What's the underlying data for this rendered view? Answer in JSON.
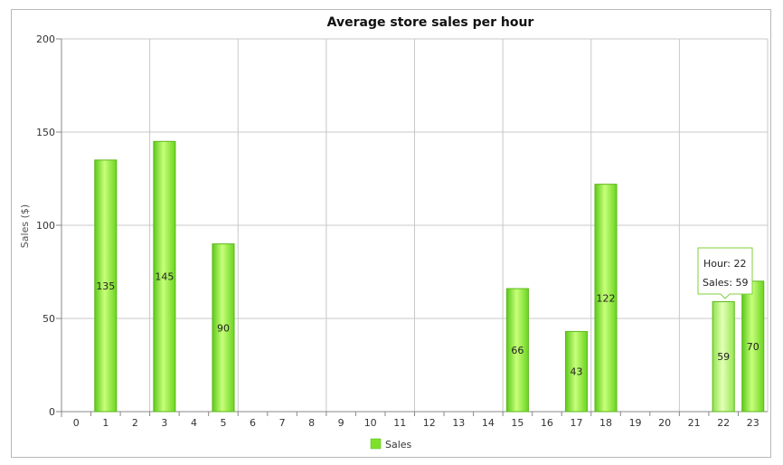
{
  "chart_data": {
    "type": "bar",
    "title": "Average store sales per hour",
    "xlabel": "",
    "ylabel": "Sales ($)",
    "ylim": [
      0,
      200
    ],
    "yticks": [
      0,
      50,
      100,
      150,
      200
    ],
    "categories": [
      "0",
      "1",
      "2",
      "3",
      "4",
      "5",
      "6",
      "7",
      "8",
      "9",
      "10",
      "11",
      "12",
      "13",
      "14",
      "15",
      "16",
      "17",
      "18",
      "19",
      "20",
      "21",
      "22",
      "23"
    ],
    "series": [
      {
        "name": "Sales",
        "color": "#7fe02c",
        "values": [
          null,
          135,
          null,
          145,
          null,
          90,
          null,
          null,
          null,
          null,
          null,
          null,
          null,
          null,
          null,
          66,
          null,
          43,
          122,
          null,
          null,
          null,
          59,
          70
        ]
      }
    ],
    "grid": true,
    "legend_position": "bottom",
    "tooltip": {
      "hour_label": "Hour: 22",
      "sales_label": "Sales: 59",
      "category_index": 22
    }
  }
}
